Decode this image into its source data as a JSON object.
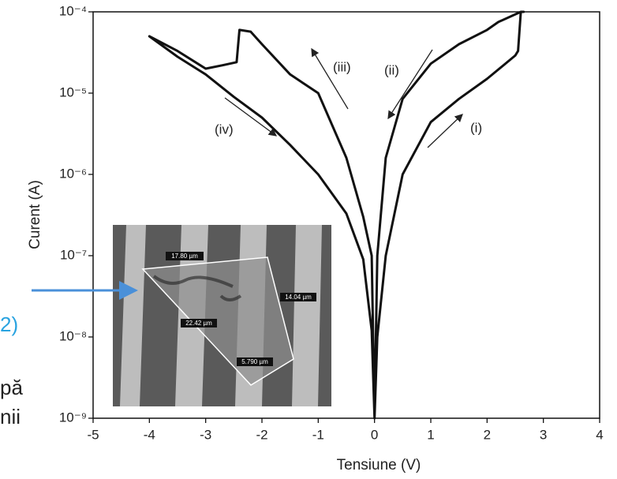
{
  "chart_data": {
    "type": "line",
    "x_label": "Tensiune (V)",
    "y_label": "Curent (A)",
    "log_y": true,
    "xlim": [
      -5,
      4
    ],
    "xticks": [
      -5,
      -4,
      -3,
      -2,
      -1,
      0,
      1,
      2,
      3,
      4
    ],
    "ylim": [
      1e-09,
      0.0001
    ],
    "yticks": [
      {
        "value": 1e-09,
        "label": "10⁻⁹"
      },
      {
        "value": 1e-08,
        "label": "10⁻⁸"
      },
      {
        "value": 1e-07,
        "label": "10⁻⁷"
      },
      {
        "value": 1e-06,
        "label": "10⁻⁶"
      },
      {
        "value": 1e-05,
        "label": "10⁻⁵"
      },
      {
        "value": 0.0001,
        "label": "10⁻⁴"
      }
    ],
    "series": [
      {
        "color": "#111111",
        "x": [
          0,
          0.05,
          0.2,
          0.5,
          1,
          1.5,
          2,
          2.5,
          2.55,
          2.6,
          2.65,
          2.6,
          2.2,
          2,
          1.5,
          1,
          0.5,
          0.2,
          0.05,
          0,
          -0.05,
          -0.2,
          -0.5,
          -1,
          -1.5,
          -2,
          -2.2,
          -2.4,
          -2.45,
          -2.7,
          -3,
          -3.5,
          -4,
          -3.5,
          -3,
          -2.5,
          -2,
          -1.5,
          -1,
          -0.5,
          -0.2,
          -0.05,
          0
        ],
        "values": [
          1e-09,
          1e-08,
          1e-07,
          1e-06,
          4.4e-06,
          8.5e-06,
          1.5e-05,
          2.9e-05,
          3.3e-05,
          0.0001,
          0.0001,
          0.0001,
          7.5e-05,
          6e-05,
          4e-05,
          2.3e-05,
          8.5e-06,
          1.6e-06,
          1e-07,
          1e-09,
          1e-07,
          3e-07,
          1.6e-06,
          1e-05,
          1.7e-05,
          4e-05,
          5.7e-05,
          6e-05,
          2.4e-05,
          2.2e-05,
          2e-05,
          3.3e-05,
          5e-05,
          2.8e-05,
          1.7e-05,
          9e-06,
          5e-06,
          2.3e-06,
          1e-06,
          3.3e-07,
          9e-08,
          1.2e-08,
          1e-09
        ]
      }
    ],
    "annotations": [
      "(i)",
      "(ii)",
      "(iii)",
      "(iv)"
    ]
  },
  "inset": {
    "labels": [
      "17.80 µm",
      "14.04 µm",
      "22.42 µm",
      "5.790 µm"
    ]
  },
  "slide_text": [
    "2)",
    "pă",
    "nii"
  ]
}
